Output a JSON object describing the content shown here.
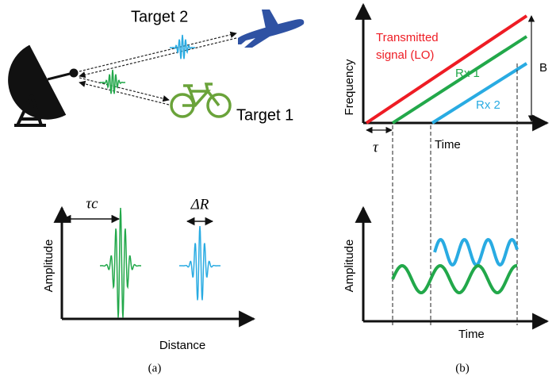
{
  "target_2": "Target 2",
  "target_1": "Target 1",
  "panel_a": {
    "tau_c": "τc",
    "delta_r": "ΔR",
    "y_label": "Amplitude",
    "x_label": "Distance",
    "caption": "(a)"
  },
  "panel_b": {
    "top": {
      "legend_tx_line1": "Transmitted",
      "legend_tx_line2": "signal (LO)",
      "rx1": "Rx 1",
      "rx2": "Rx 2",
      "bandwidth": "B",
      "y_label": "Frequency",
      "x_label": "Time",
      "tau": "τ"
    },
    "bottom": {
      "y_label": "Amplitude",
      "x_label": "Time"
    },
    "caption": "(b)"
  }
}
